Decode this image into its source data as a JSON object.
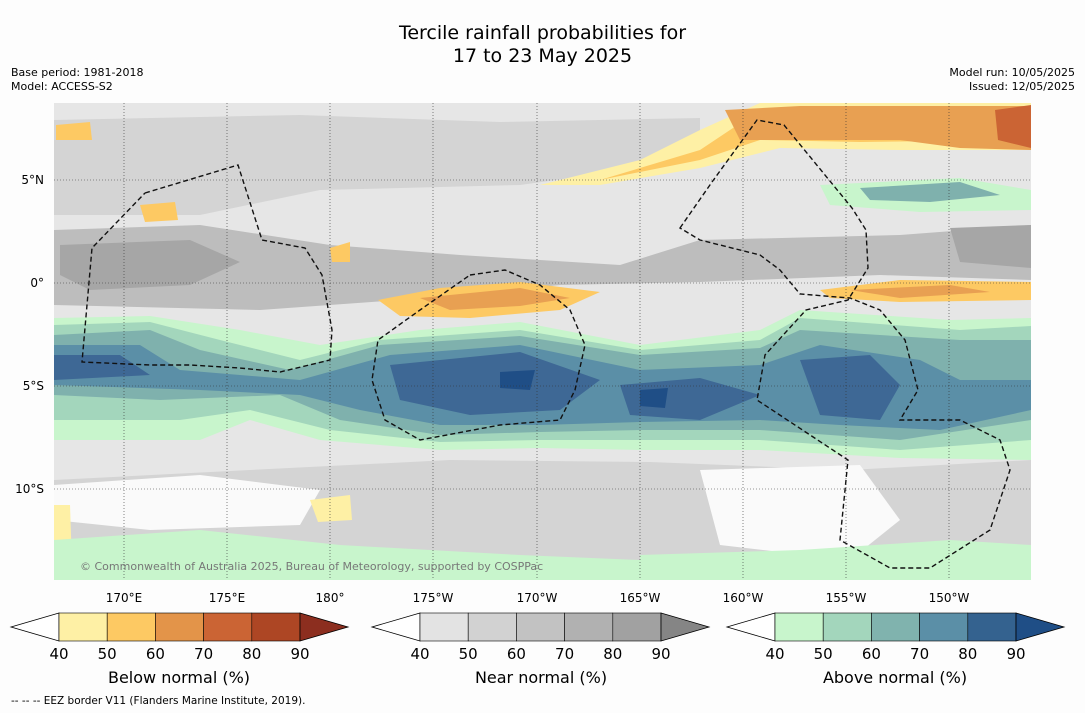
{
  "title": {
    "line1": "Tercile rainfall probabilities for",
    "line2": "17 to 23 May 2025"
  },
  "meta": {
    "base_period": "Base period: 1981-2018",
    "model": "Model: ACCESS-S2",
    "model_run": "Model run: 10/05/2025",
    "issued": "Issued: 12/05/2025"
  },
  "map": {
    "lat_labels": [
      "5°N",
      "0°",
      "5°S",
      "10°S"
    ],
    "lon_labels": [
      "170°E",
      "175°E",
      "180°",
      "175°W",
      "170°W",
      "165°W",
      "160°W",
      "155°W",
      "150°W"
    ],
    "copyright": "© Commonwealth of Australia 2025, Bureau of Meteorology, supported by COSPPac",
    "colors": {
      "below_40": "#fef0a5",
      "below_50": "#fdc963",
      "below_60": "#e8a052",
      "near_40": "#e6e6e6",
      "near_50": "#d4d4d4",
      "near_60": "#bdbdbd",
      "near_70": "#a6a6a6",
      "above_40": "#c8f5cc",
      "above_50": "#a3d6bc",
      "above_60": "#7fb1ad",
      "above_70": "#5b8fa7",
      "above_80": "#3e6895",
      "above_90": "#1f4e86"
    }
  },
  "colorbars": [
    {
      "label": "Below normal (%)",
      "ticks": [
        "40",
        "50",
        "60",
        "70",
        "80",
        "90"
      ],
      "colors": [
        "#fef0a5",
        "#fdc963",
        "#e39449",
        "#cb6434",
        "#ad4624"
      ],
      "over": "#8c2e1f"
    },
    {
      "label": "Near normal (%)",
      "ticks": [
        "40",
        "50",
        "60",
        "70",
        "80",
        "90"
      ],
      "colors": [
        "#e3e3e3",
        "#d2d2d2",
        "#c2c2c2",
        "#b1b1b1",
        "#a1a1a1"
      ],
      "over": "#858585"
    },
    {
      "label": "Above normal (%)",
      "ticks": [
        "40",
        "50",
        "60",
        "70",
        "80",
        "90"
      ],
      "colors": [
        "#c8f5cc",
        "#a3d6bc",
        "#80b3ae",
        "#5b8fa7",
        "#34628f"
      ],
      "over": "#1f4e86"
    }
  ],
  "footer": "-- -- -- EEZ border V11 (Flanders Marine Institute, 2019)."
}
